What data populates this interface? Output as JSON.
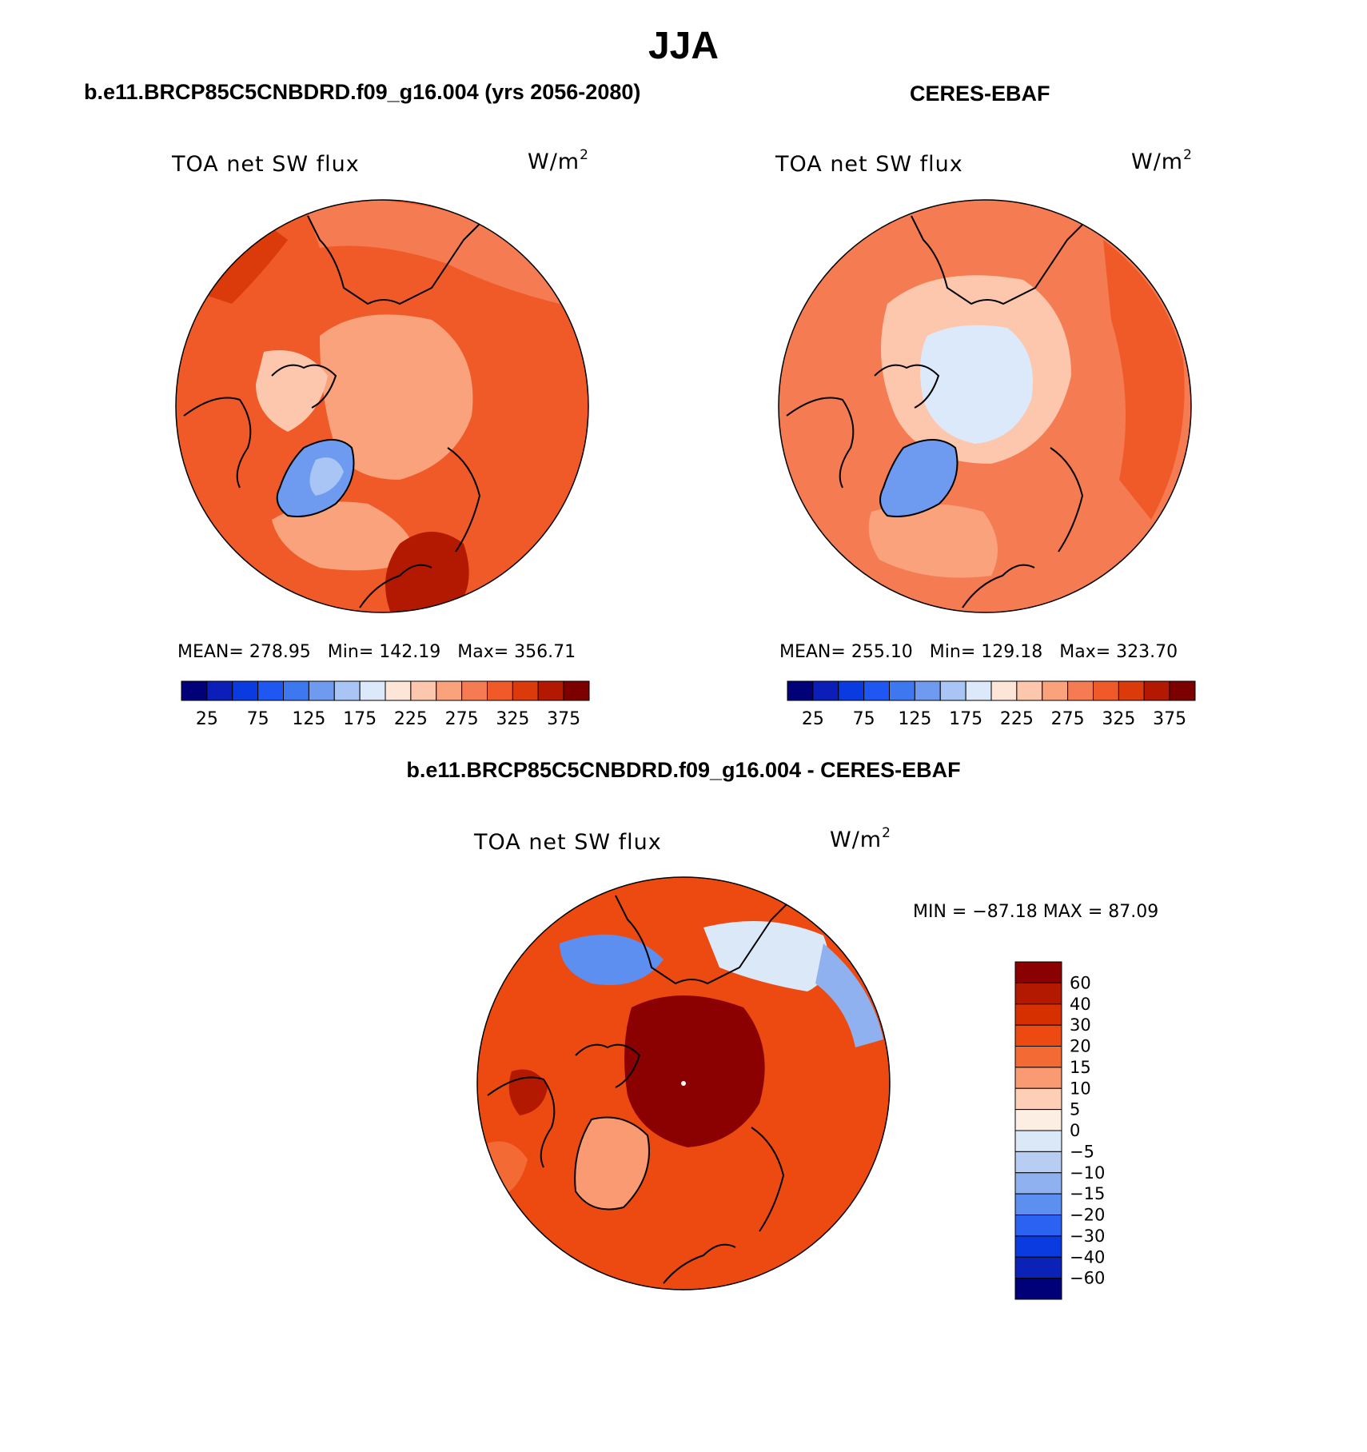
{
  "figure": {
    "season": "JJA",
    "panel_left": {
      "case_title": "b.e11.BRCP85C5CNBDRD.f09_g16.004 (yrs 2056-2080)",
      "variable": "TOA net SW flux",
      "units_base": "W/m",
      "units_exp": "2",
      "stats": {
        "mean_label": "MEAN=",
        "mean_value": "278.95",
        "min_label": "Min=",
        "min_value": "142.19",
        "max_label": "Max=",
        "max_value": "356.71"
      }
    },
    "panel_right": {
      "case_title": "CERES-EBAF",
      "variable": "TOA net SW flux",
      "units_base": "W/m",
      "units_exp": "2",
      "stats": {
        "mean_label": "MEAN=",
        "mean_value": "255.10",
        "min_label": "Min=",
        "min_value": "129.18",
        "max_label": "Max=",
        "max_value": "323.70"
      }
    },
    "panel_diff": {
      "case_title": "b.e11.BRCP85C5CNBDRD.f09_g16.004 - CERES-EBAF",
      "variable": "TOA net SW flux",
      "units_base": "W/m",
      "units_exp": "2",
      "stats_text": "MIN = −87.18 MAX =  87.09"
    }
  },
  "chart_data": [
    {
      "type": "heatmap",
      "projection": "north polar stereographic",
      "title": "TOA net SW flux",
      "units": "W/m2",
      "mean": 278.95,
      "min": 142.19,
      "max": 356.71,
      "colorbar_levels": [
        0,
        25,
        50,
        75,
        100,
        125,
        150,
        175,
        200,
        225,
        250,
        275,
        300,
        325,
        350,
        375,
        400
      ],
      "colorbar_labels": [
        "25",
        "75",
        "125",
        "175",
        "225",
        "275",
        "325",
        "375"
      ],
      "colors": [
        "#000078",
        "#0b1fb8",
        "#0a3be0",
        "#1f57f2",
        "#3d78f0",
        "#6e9bf0",
        "#a8c5f5",
        "#dce9fa",
        "#fde6d8",
        "#fcc7ad",
        "#f9a27c",
        "#f57b52",
        "#f05a28",
        "#db3b0b",
        "#b31900",
        "#7d0000"
      ]
    },
    {
      "type": "heatmap",
      "projection": "north polar stereographic",
      "title": "TOA net SW flux",
      "units": "W/m2",
      "mean": 255.1,
      "min": 129.18,
      "max": 323.7,
      "colorbar_levels": [
        0,
        25,
        50,
        75,
        100,
        125,
        150,
        175,
        200,
        225,
        250,
        275,
        300,
        325,
        350,
        375,
        400
      ],
      "colorbar_labels": [
        "25",
        "75",
        "125",
        "175",
        "225",
        "275",
        "325",
        "375"
      ],
      "colors": [
        "#000078",
        "#0b1fb8",
        "#0a3be0",
        "#1f57f2",
        "#3d78f0",
        "#6e9bf0",
        "#a8c5f5",
        "#dce9fa",
        "#fde6d8",
        "#fcc7ad",
        "#f9a27c",
        "#f57b52",
        "#f05a28",
        "#db3b0b",
        "#b31900",
        "#7d0000"
      ]
    },
    {
      "type": "heatmap",
      "projection": "north polar stereographic",
      "title": "TOA net SW flux",
      "units": "W/m2",
      "min": -87.18,
      "max": 87.09,
      "colorbar_labels_top_to_bottom": [
        "60",
        "40",
        "30",
        "20",
        "15",
        "10",
        "5",
        "0",
        "−5",
        "−10",
        "−15",
        "−20",
        "−30",
        "−40",
        "−60"
      ],
      "colors_top_to_bottom": [
        "#8b0000",
        "#b31900",
        "#d63000",
        "#ec4a11",
        "#f46a35",
        "#f99a73",
        "#fccfb6",
        "#fdeee4",
        "#dbe8f8",
        "#b7cdf3",
        "#8fb1ef",
        "#5d8ff0",
        "#2b62f2",
        "#0a3be0",
        "#0b22b8",
        "#000078"
      ]
    }
  ]
}
